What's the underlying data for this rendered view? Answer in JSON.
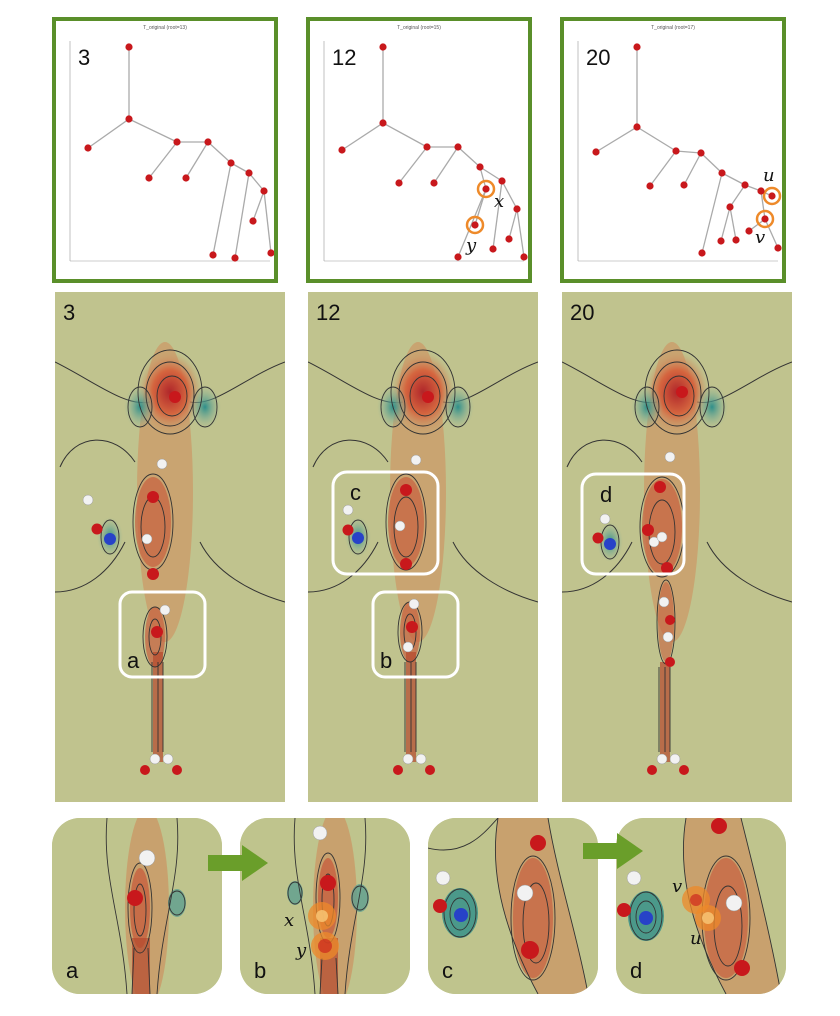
{
  "tree_panels": [
    {
      "label": "3",
      "title": "T_original (root=13)"
    },
    {
      "label": "12",
      "title": "T_original (root=15)",
      "marks": [
        "x",
        "y"
      ]
    },
    {
      "label": "20",
      "title": "T_original (root=17)",
      "marks": [
        "u",
        "v"
      ]
    }
  ],
  "field_panels": [
    {
      "label": "3",
      "boxes": [
        "a"
      ]
    },
    {
      "label": "12",
      "boxes": [
        "c",
        "b"
      ]
    },
    {
      "label": "20",
      "boxes": [
        "d"
      ]
    }
  ],
  "zoom_panels": [
    {
      "label": "a"
    },
    {
      "label": "b",
      "marks": [
        "x",
        "y"
      ]
    },
    {
      "label": "c"
    },
    {
      "label": "d",
      "marks": [
        "v",
        "u"
      ]
    }
  ],
  "colors": {
    "frame_green": "#5a8f2a",
    "node_red": "#c8181c",
    "highlight_orange": "#ee8a2a",
    "field_background": "#c0c38e",
    "arrow_green": "#6a9e2a"
  }
}
